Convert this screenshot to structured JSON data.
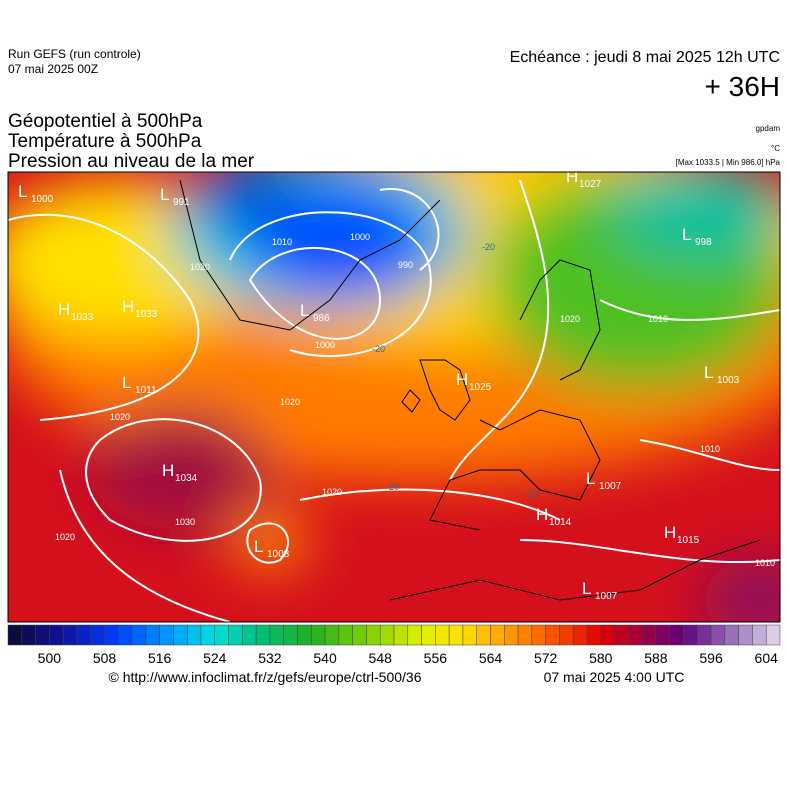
{
  "header": {
    "run": "Run GEFS (run controle)",
    "run_date": "07 mai 2025 00Z",
    "echeance": "Echéance : jeudi 8 mai 2025 12h UTC",
    "lead": "+ 36H",
    "fields": [
      "Géopotentiel à 500hPa",
      "Température à 500hPa",
      "Pression au niveau de la mer"
    ],
    "units": [
      "gpdam",
      "°C",
      "[Max 1033.5 | Min 986.0] hPa"
    ]
  },
  "centers": [
    {
      "kind": "L",
      "value": "1000"
    },
    {
      "kind": "L",
      "value": "991"
    },
    {
      "kind": "H",
      "value": "1033"
    },
    {
      "kind": "H",
      "value": "1033"
    },
    {
      "kind": "L",
      "value": "986"
    },
    {
      "kind": "L",
      "value": "1011"
    },
    {
      "kind": "H",
      "value": "1025"
    },
    {
      "kind": "H",
      "value": "1034"
    },
    {
      "kind": "L",
      "value": "1008"
    },
    {
      "kind": "H",
      "value": "1027"
    },
    {
      "kind": "L",
      "value": "998"
    },
    {
      "kind": "L",
      "value": "1003"
    },
    {
      "kind": "L",
      "value": "1007"
    },
    {
      "kind": "H",
      "value": "1014"
    },
    {
      "kind": "H",
      "value": "1015"
    },
    {
      "kind": "L",
      "value": "1007"
    }
  ],
  "isobar_labels": [
    "1010",
    "1000",
    "990",
    "1000",
    "1020",
    "1020",
    "1020",
    "1030",
    "1020",
    "1010",
    "1010",
    "1010",
    "1020",
    "1020"
  ],
  "temp_labels": [
    "-20",
    "-20",
    "-20",
    "-20"
  ],
  "colorbar": {
    "min": 494,
    "max": 606,
    "step": 2,
    "anchors": [
      [
        494,
        "#0a0a30"
      ],
      [
        502,
        "#1010a0"
      ],
      [
        510,
        "#0040ff"
      ],
      [
        518,
        "#00a0ff"
      ],
      [
        524,
        "#00e0e0"
      ],
      [
        530,
        "#00c080"
      ],
      [
        538,
        "#20b020"
      ],
      [
        546,
        "#80d000"
      ],
      [
        554,
        "#e0f000"
      ],
      [
        560,
        "#ffe000"
      ],
      [
        566,
        "#ffa000"
      ],
      [
        572,
        "#ff6000"
      ],
      [
        580,
        "#e00000"
      ],
      [
        586,
        "#a00040"
      ],
      [
        592,
        "#600080"
      ],
      [
        600,
        "#a080c0"
      ],
      [
        606,
        "#e8dcee"
      ]
    ],
    "ticks": [
      500,
      508,
      516,
      524,
      532,
      540,
      548,
      556,
      564,
      572,
      580,
      588,
      596,
      604
    ]
  },
  "footer": {
    "url": "© http://www.infoclimat.fr/z/gefs/europe/ctrl-500/36",
    "time": "07 mai 2025  4:00 UTC"
  }
}
